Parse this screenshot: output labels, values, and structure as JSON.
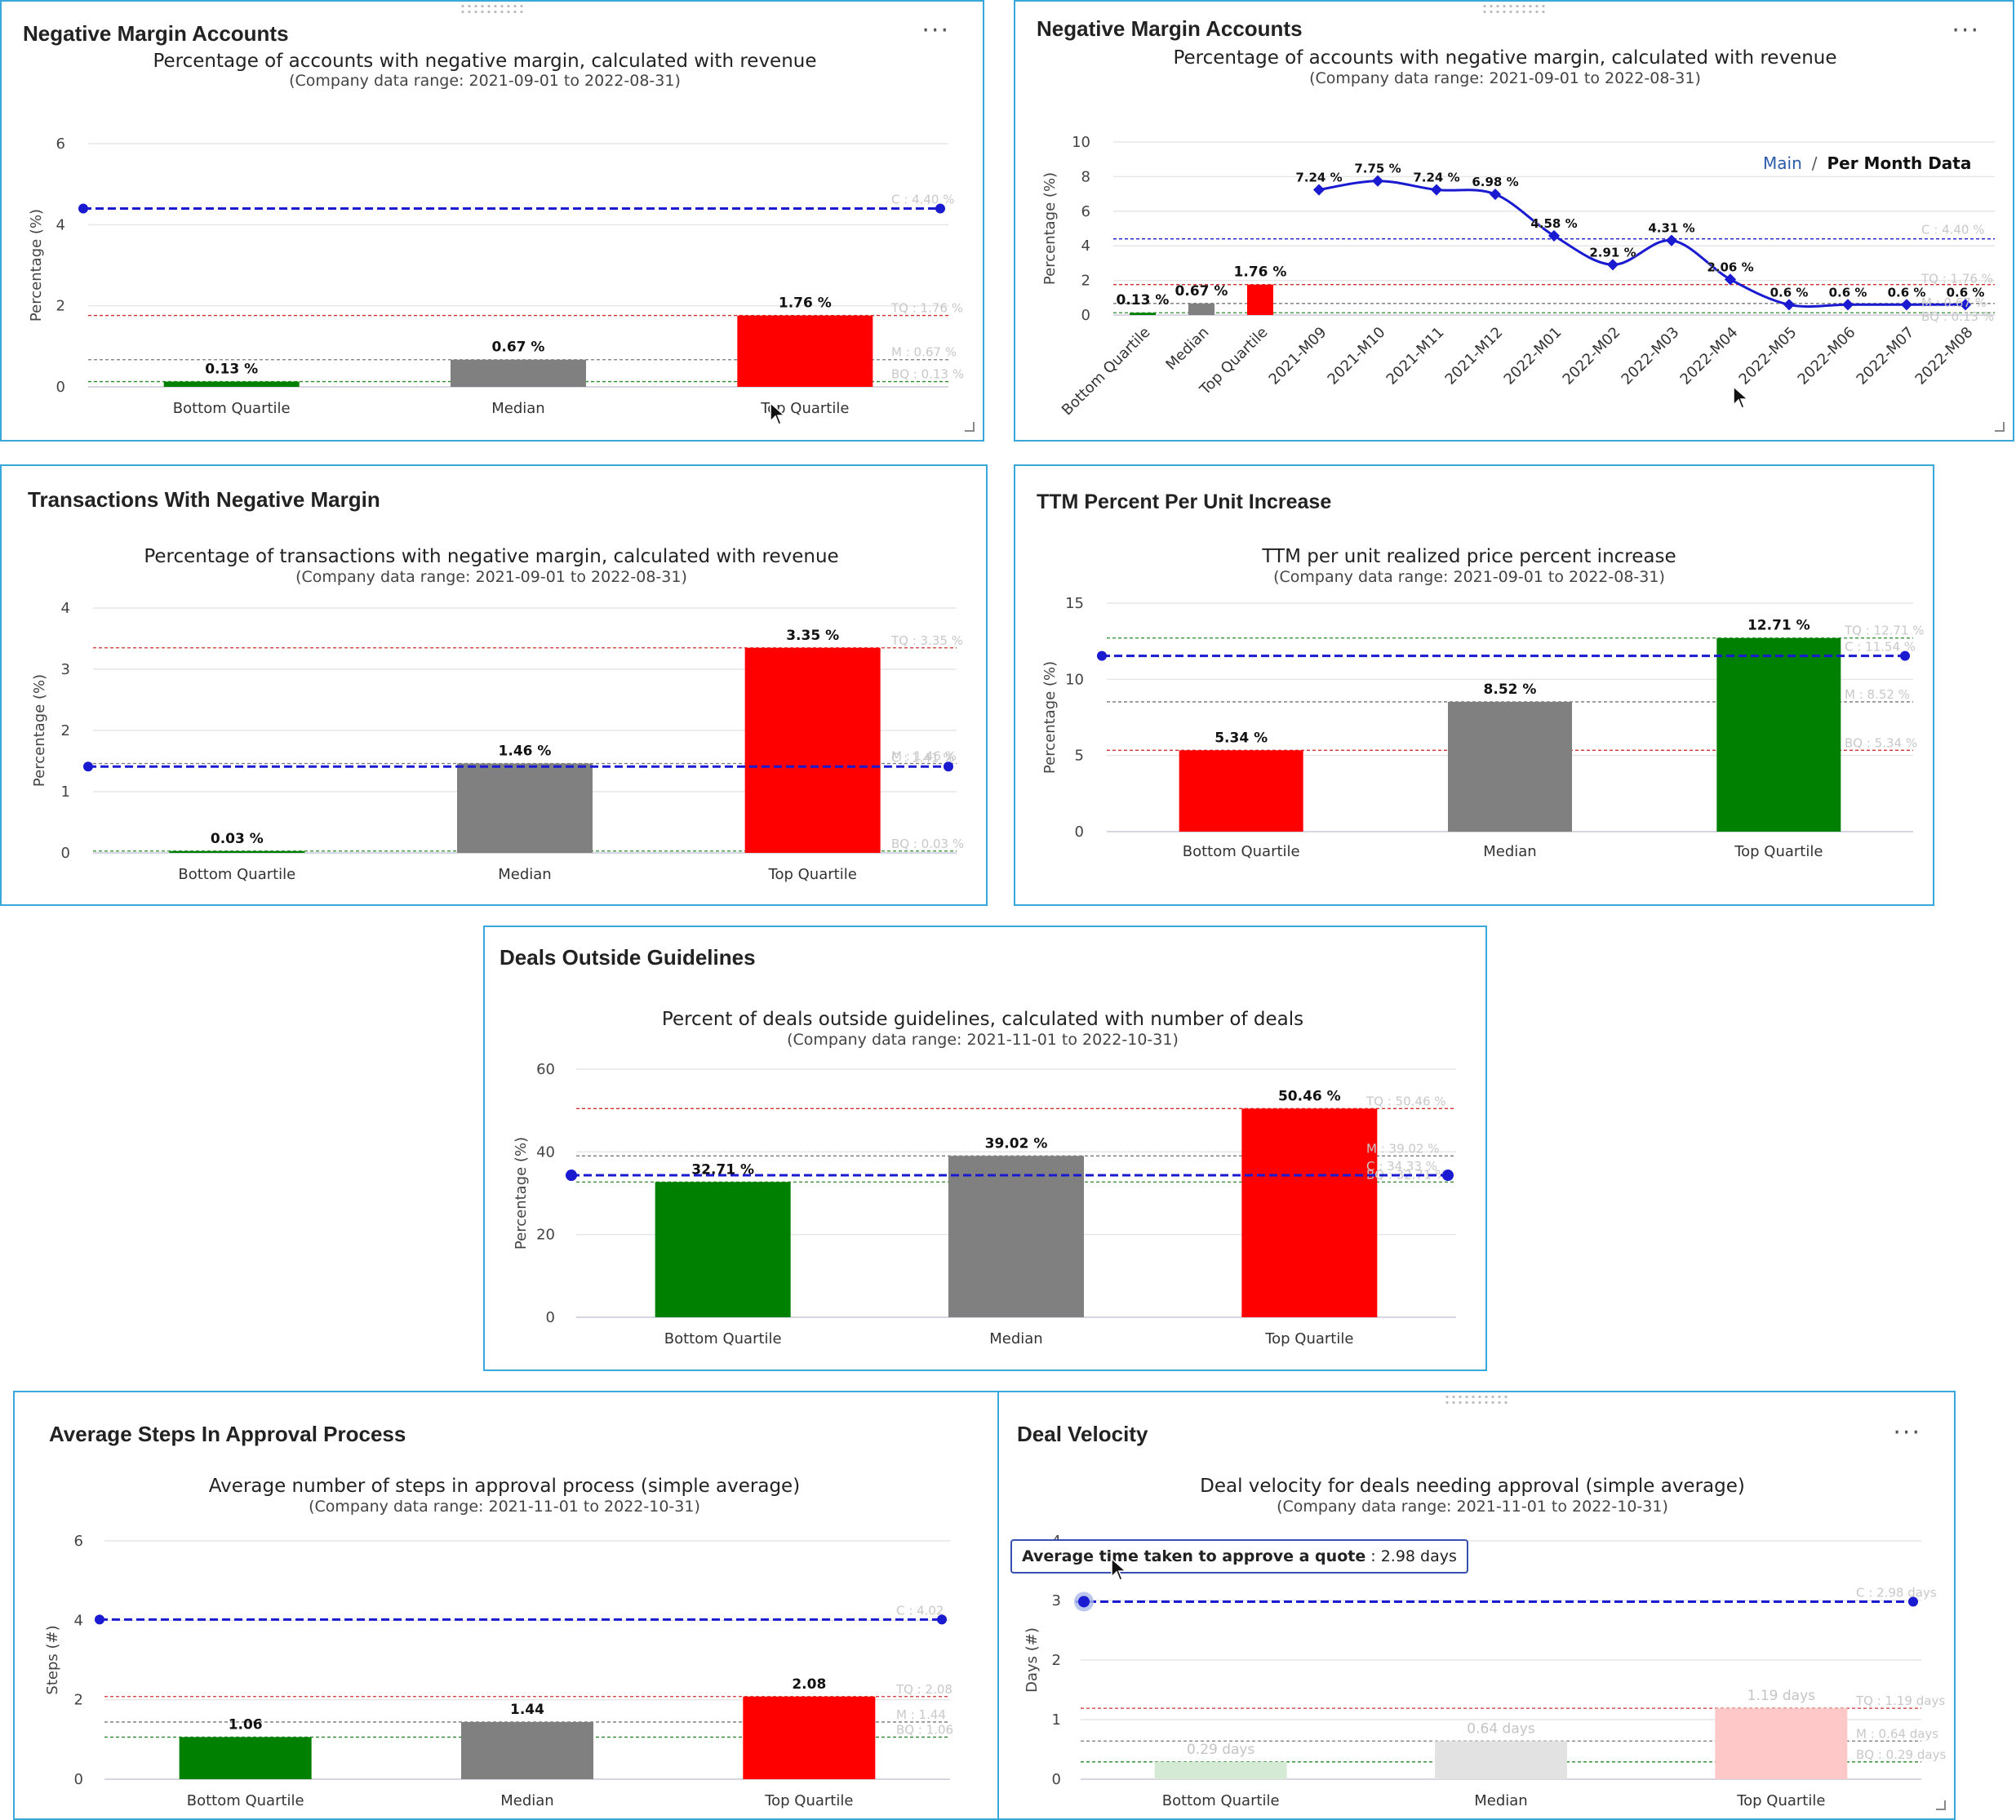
{
  "panels": [
    {
      "title": "Negative Margin Accounts",
      "menu": "···",
      "chart_title": "Percentage of accounts with negative margin, calculated with revenue",
      "chart_subtitle": "(Company data range: 2021-09-01 to 2022-08-31)",
      "chart_data": {
        "type": "bar",
        "categories": [
          "Bottom Quartile",
          "Median",
          "Top Quartile"
        ],
        "values": [
          0.13,
          0.67,
          1.76
        ],
        "value_labels": [
          "0.13 %",
          "0.67 %",
          "1.76 %"
        ],
        "bar_colors": [
          "#008000",
          "#808080",
          "#ff0000"
        ],
        "ylabel": "Percentage (%)",
        "ylim": [
          0,
          6
        ],
        "yticks": [
          0,
          2,
          4,
          6
        ],
        "company_value": 4.4,
        "reference_labels": {
          "tq": "TQ : 1.76 %",
          "m": "M : 0.67 %",
          "bq": "BQ : 0.13 %",
          "c": "C : 4.40 %"
        }
      }
    },
    {
      "title": "Negative Margin Accounts",
      "menu": "···",
      "chart_title": "Percentage of accounts with negative margin, calculated with revenue",
      "chart_subtitle": "(Company data range: 2021-09-01 to 2022-08-31)",
      "toggle": {
        "main": "Main",
        "sep": "/",
        "per": "Per Month Data"
      },
      "chart_data": {
        "type": "bar+line",
        "categories": [
          "Bottom Quartile",
          "Median",
          "Top Quartile"
        ],
        "values": [
          0.13,
          0.67,
          1.76
        ],
        "value_labels": [
          "0.13 %",
          "0.67 %",
          "1.76 %"
        ],
        "bar_colors": [
          "#008000",
          "#808080",
          "#ff0000"
        ],
        "months": [
          "2021-M09",
          "2021-M10",
          "2021-M11",
          "2021-M12",
          "2022-M01",
          "2022-M02",
          "2022-M03",
          "2022-M04",
          "2022-M05",
          "2022-M06",
          "2022-M07",
          "2022-M08"
        ],
        "monthly_values": [
          7.24,
          7.75,
          7.24,
          6.98,
          4.58,
          2.91,
          4.31,
          2.06,
          0.6,
          0.6,
          0.6,
          0.6
        ],
        "monthly_labels": [
          "7.24 %",
          "7.75 %",
          "7.24 %",
          "6.98 %",
          "4.58 %",
          "2.91 %",
          "4.31 %",
          "2.06 %",
          "0.6 %",
          "0.6 %",
          "0.6 %",
          "0.6 %"
        ],
        "ylabel": "Percentage (%)",
        "ylim": [
          0,
          10
        ],
        "yticks": [
          0,
          2,
          4,
          6,
          8,
          10
        ],
        "company_value": 4.4,
        "reference_labels": {
          "tq": "TQ : 1.76 %",
          "m": "M : 0.67 %",
          "bq": "BQ : 0.13 %",
          "c": "C : 4.40 %"
        }
      }
    },
    {
      "title": "Transactions With Negative Margin",
      "chart_title": "Percentage of transactions with negative margin, calculated with revenue",
      "chart_subtitle": "(Company data range: 2021-09-01 to 2022-08-31)",
      "chart_data": {
        "type": "bar",
        "categories": [
          "Bottom Quartile",
          "Median",
          "Top Quartile"
        ],
        "values": [
          0.03,
          1.46,
          3.35
        ],
        "value_labels": [
          "0.03 %",
          "1.46 %",
          "3.35 %"
        ],
        "bar_colors": [
          "#008000",
          "#808080",
          "#ff0000"
        ],
        "ylabel": "Percentage (%)",
        "ylim": [
          0,
          4
        ],
        "yticks": [
          0,
          1,
          2,
          3,
          4
        ],
        "company_value": 1.41,
        "reference_labels": {
          "tq": "TQ : 3.35 %",
          "m": "M : 1.46 %",
          "bq": "BQ : 0.03 %",
          "c": "C : 1.41 %"
        }
      }
    },
    {
      "title": "TTM Percent Per Unit Increase",
      "chart_title": "TTM per unit realized price percent increase",
      "chart_subtitle": "(Company data range: 2021-09-01 to 2022-08-31)",
      "chart_data": {
        "type": "bar",
        "categories": [
          "Bottom Quartile",
          "Median",
          "Top Quartile"
        ],
        "values": [
          5.34,
          8.52,
          12.71
        ],
        "value_labels": [
          "5.34 %",
          "8.52 %",
          "12.71 %"
        ],
        "bar_colors": [
          "#ff0000",
          "#808080",
          "#008000"
        ],
        "ylabel": "Percentage (%)",
        "ylim": [
          0,
          15
        ],
        "yticks": [
          0,
          5,
          10,
          15
        ],
        "company_value": 11.54,
        "reference_labels": {
          "tq": "TQ : 12.71 %",
          "m": "M : 8.52 %",
          "bq": "BQ : 5.34 %",
          "c": "C : 11.54 %"
        }
      }
    },
    {
      "title": "Deals Outside Guidelines",
      "chart_title": "Percent of deals outside guidelines, calculated with number of deals",
      "chart_subtitle": "(Company data range: 2021-11-01 to 2022-10-31)",
      "chart_data": {
        "type": "bar",
        "categories": [
          "Bottom Quartile",
          "Median",
          "Top Quartile"
        ],
        "values": [
          32.71,
          39.02,
          50.46
        ],
        "value_labels": [
          "32.71 %",
          "39.02 %",
          "50.46 %"
        ],
        "bar_colors": [
          "#008000",
          "#808080",
          "#ff0000"
        ],
        "ylabel": "Percentage (%)",
        "ylim": [
          0,
          60
        ],
        "yticks": [
          0,
          20,
          40,
          60
        ],
        "company_value": 34.33,
        "reference_labels": {
          "tq": "TQ : 50.46 %",
          "m": "M : 39.02 %",
          "bq": "BQ : 32.71 %",
          "c": "C : 34.33 %"
        }
      }
    },
    {
      "title": "Average Steps In Approval Process",
      "chart_title": "Average number of steps in approval process (simple average)",
      "chart_subtitle": "(Company data range: 2021-11-01 to 2022-10-31)",
      "chart_data": {
        "type": "bar",
        "categories": [
          "Bottom Quartile",
          "Median",
          "Top Quartile"
        ],
        "values": [
          1.06,
          1.44,
          2.08
        ],
        "value_labels": [
          "1.06",
          "1.44",
          "2.08"
        ],
        "bar_colors": [
          "#008000",
          "#808080",
          "#ff0000"
        ],
        "ylabel": "Steps (#)",
        "ylim": [
          0,
          6
        ],
        "yticks": [
          0,
          2,
          4,
          6
        ],
        "company_value": 4.02,
        "reference_labels": {
          "tq": "TQ : 2.08",
          "m": "M : 1.44",
          "bq": "BQ : 1.06",
          "c": "C : 4.02"
        }
      }
    },
    {
      "title": "Deal Velocity",
      "menu": "···",
      "chart_title": "Deal velocity for deals needing approval (simple average)",
      "chart_subtitle": "(Company data range: 2021-11-01 to 2022-10-31)",
      "tooltip": {
        "label": "Average time taken to approve a quote",
        "value": " : 2.98 days"
      },
      "chart_data": {
        "type": "bar",
        "categories": [
          "Bottom Quartile",
          "Median",
          "Top Quartile"
        ],
        "values": [
          0.29,
          0.64,
          1.19
        ],
        "value_labels": [
          "0.29 days",
          "0.64 days",
          "1.19 days"
        ],
        "bar_colors": [
          "#d5ead5",
          "#e2e2e2",
          "#ffc8c8"
        ],
        "faded": true,
        "ylabel": "Days (#)",
        "ylim": [
          0,
          4
        ],
        "yticks": [
          0,
          1,
          2,
          3,
          4
        ],
        "company_value": 2.98,
        "reference_labels": {
          "tq": "TQ : 1.19 days",
          "m": "M : 0.64 days",
          "bq": "BQ : 0.29 days",
          "c": "C : 2.98 days"
        }
      }
    }
  ]
}
